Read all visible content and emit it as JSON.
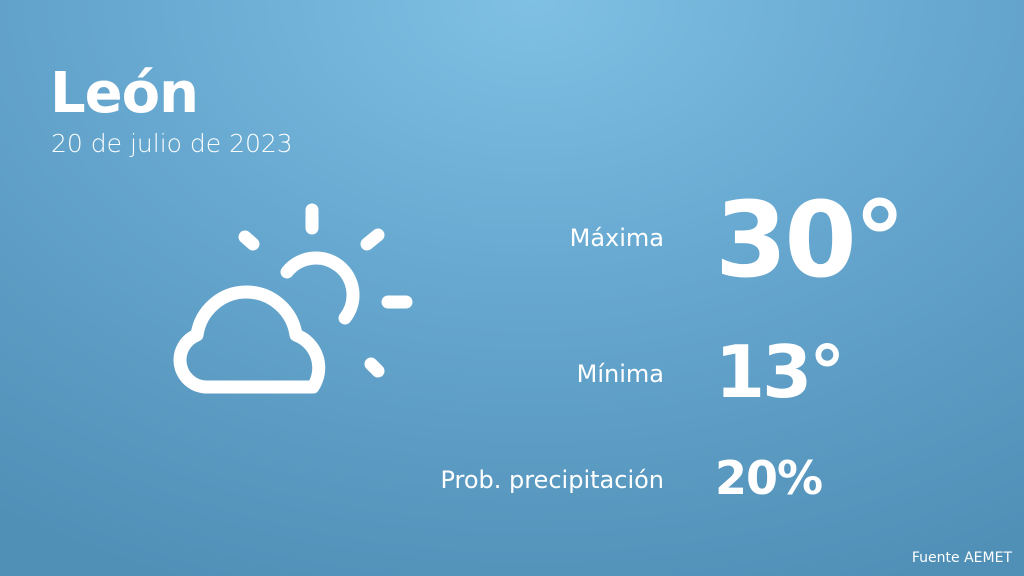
{
  "location": "León",
  "date": "20 de julio de 2023",
  "icon": "partly-cloudy-icon",
  "stats": [
    {
      "label": "Máxima",
      "value": "30°"
    },
    {
      "label": "Mínima",
      "value": "13°"
    },
    {
      "label": "Prob. precipitación",
      "value": "20%"
    }
  ],
  "source": "Fuente AEMET",
  "colors": {
    "bg_top": "#7fc0e4",
    "bg_bottom": "#508fb6",
    "text": "#ffffff"
  }
}
